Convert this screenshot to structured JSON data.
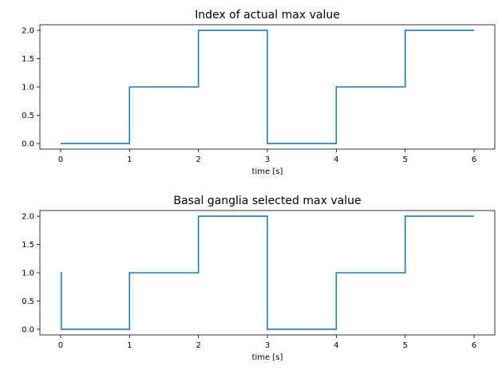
{
  "chart_data": [
    {
      "type": "line",
      "title": "Index of actual max value",
      "xlabel": "time [s]",
      "ylabel": "",
      "xlim": [
        -0.3,
        6.3
      ],
      "ylim": [
        -0.1,
        2.1
      ],
      "xticks": [
        0,
        1,
        2,
        3,
        4,
        5,
        6
      ],
      "xtick_labels": [
        "0",
        "1",
        "2",
        "3",
        "4",
        "5",
        "6"
      ],
      "yticks": [
        0.0,
        0.5,
        1.0,
        1.5,
        2.0
      ],
      "ytick_labels": [
        "0.0",
        "0.5",
        "1.0",
        "1.5",
        "2.0"
      ],
      "grid": false,
      "color": "#1f77b4",
      "series": [
        {
          "x": [
            0,
            1,
            1,
            2,
            2,
            3,
            3,
            4,
            4,
            5,
            5,
            6
          ],
          "y": [
            0,
            0,
            1,
            1,
            2,
            2,
            0,
            0,
            1,
            1,
            2,
            2
          ]
        }
      ]
    },
    {
      "type": "line",
      "title": "Basal ganglia selected max value",
      "xlabel": "time [s]",
      "ylabel": "",
      "xlim": [
        -0.3,
        6.3
      ],
      "ylim": [
        -0.1,
        2.1
      ],
      "xticks": [
        0,
        1,
        2,
        3,
        4,
        5,
        6
      ],
      "xtick_labels": [
        "0",
        "1",
        "2",
        "3",
        "4",
        "5",
        "6"
      ],
      "yticks": [
        0.0,
        0.5,
        1.0,
        1.5,
        2.0
      ],
      "ytick_labels": [
        "0.0",
        "0.5",
        "1.0",
        "1.5",
        "2.0"
      ],
      "grid": false,
      "color": "#1f77b4",
      "series": [
        {
          "x": [
            0,
            0.01,
            0.01,
            1,
            1,
            2,
            2,
            3,
            3,
            4,
            4,
            5,
            5,
            6
          ],
          "y": [
            1,
            1,
            0,
            0,
            1,
            1,
            2,
            2,
            0,
            0,
            1,
            1,
            2,
            2
          ]
        }
      ]
    }
  ]
}
